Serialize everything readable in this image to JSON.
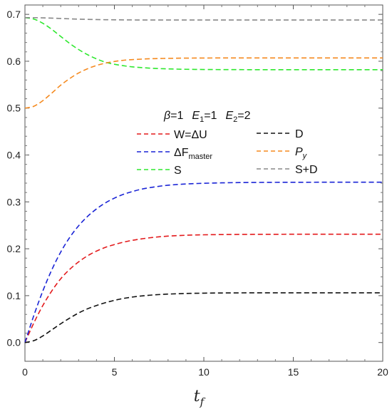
{
  "chart_data": {
    "type": "line",
    "title": "",
    "xlabel": "t",
    "xlabel_sub": "f",
    "xlim": [
      0,
      20
    ],
    "ylim": [
      -0.04,
      0.72
    ],
    "x_ticks": [
      0,
      5,
      10,
      15,
      20
    ],
    "y_ticks": [
      0.0,
      0.1,
      0.2,
      0.3,
      0.4,
      0.5,
      0.6,
      0.7
    ],
    "x_tick_labels": [
      "0",
      "5",
      "10",
      "15",
      "20"
    ],
    "y_tick_labels": [
      "0.0",
      "0.1",
      "0.2",
      "0.3",
      "0.4",
      "0.5",
      "0.6",
      "0.7"
    ],
    "grid": false,
    "parameters": {
      "beta": "β",
      "beta_val": "=1",
      "e1": "E",
      "e1_sub": "1",
      "e1_val": "=1",
      "e2": "E",
      "e2_sub": "2",
      "e2_val": "=2"
    },
    "x": [
      0,
      0.5,
      1,
      1.5,
      2,
      2.5,
      3,
      3.5,
      4,
      4.5,
      5,
      5.5,
      6,
      6.5,
      7,
      7.5,
      8,
      8.5,
      9,
      9.5,
      10,
      11,
      12,
      13,
      14,
      15,
      16,
      17,
      18,
      19,
      20
    ],
    "series": [
      {
        "name": "W=ΔU",
        "color": "#e31a1c",
        "values": [
          0.0,
          0.042,
          0.079,
          0.11,
          0.136,
          0.156,
          0.172,
          0.185,
          0.195,
          0.203,
          0.209,
          0.214,
          0.218,
          0.221,
          0.2235,
          0.2255,
          0.227,
          0.228,
          0.2288,
          0.2294,
          0.2298,
          0.2303,
          0.2306,
          0.2308,
          0.2309,
          0.231,
          0.231,
          0.231,
          0.231,
          0.231,
          0.231
        ]
      },
      {
        "name_main": "ΔF",
        "name_sub": "master",
        "color": "#1a24d6",
        "values": [
          0.0,
          0.058,
          0.11,
          0.155,
          0.193,
          0.224,
          0.249,
          0.269,
          0.285,
          0.298,
          0.308,
          0.316,
          0.322,
          0.327,
          0.3305,
          0.3333,
          0.3355,
          0.337,
          0.3382,
          0.339,
          0.3397,
          0.3406,
          0.3412,
          0.3415,
          0.3417,
          0.3418,
          0.3419,
          0.342,
          0.342,
          0.342,
          0.342
        ]
      },
      {
        "name": "S",
        "color": "#2ee82e",
        "values": [
          0.693,
          0.69,
          0.681,
          0.668,
          0.653,
          0.638,
          0.625,
          0.614,
          0.605,
          0.598,
          0.5935,
          0.5905,
          0.588,
          0.5865,
          0.5852,
          0.5843,
          0.5837,
          0.5832,
          0.5828,
          0.5826,
          0.5824,
          0.5822,
          0.5821,
          0.582,
          0.582,
          0.582,
          0.582,
          0.582,
          0.582,
          0.582,
          0.582
        ]
      },
      {
        "name": "D",
        "color": "#111111",
        "values": [
          0.0,
          0.004,
          0.014,
          0.027,
          0.04,
          0.052,
          0.063,
          0.072,
          0.079,
          0.085,
          0.09,
          0.094,
          0.097,
          0.0993,
          0.101,
          0.1023,
          0.1033,
          0.104,
          0.1046,
          0.105,
          0.1053,
          0.1057,
          0.1059,
          0.106,
          0.106,
          0.106,
          0.106,
          0.106,
          0.106,
          0.106,
          0.106
        ]
      },
      {
        "name_main": "P",
        "name_sub": "y",
        "color": "#f58a1f",
        "values": [
          0.5,
          0.504,
          0.516,
          0.532,
          0.549,
          0.563,
          0.575,
          0.584,
          0.591,
          0.596,
          0.5995,
          0.602,
          0.6035,
          0.6045,
          0.6053,
          0.6058,
          0.6062,
          0.6065,
          0.6067,
          0.6068,
          0.6069,
          0.607,
          0.607,
          0.607,
          0.607,
          0.607,
          0.607,
          0.607,
          0.607,
          0.607,
          0.607
        ]
      },
      {
        "name": "S+D",
        "color": "#888888",
        "values": [
          0.693,
          0.693,
          0.6925,
          0.692,
          0.6912,
          0.6905,
          0.6898,
          0.6893,
          0.6889,
          0.6886,
          0.6884,
          0.6882,
          0.6881,
          0.688,
          0.688,
          0.688,
          0.688,
          0.688,
          0.688,
          0.688,
          0.688,
          0.688,
          0.688,
          0.688,
          0.688,
          0.688,
          0.688,
          0.688,
          0.688,
          0.688,
          0.688
        ]
      }
    ]
  }
}
